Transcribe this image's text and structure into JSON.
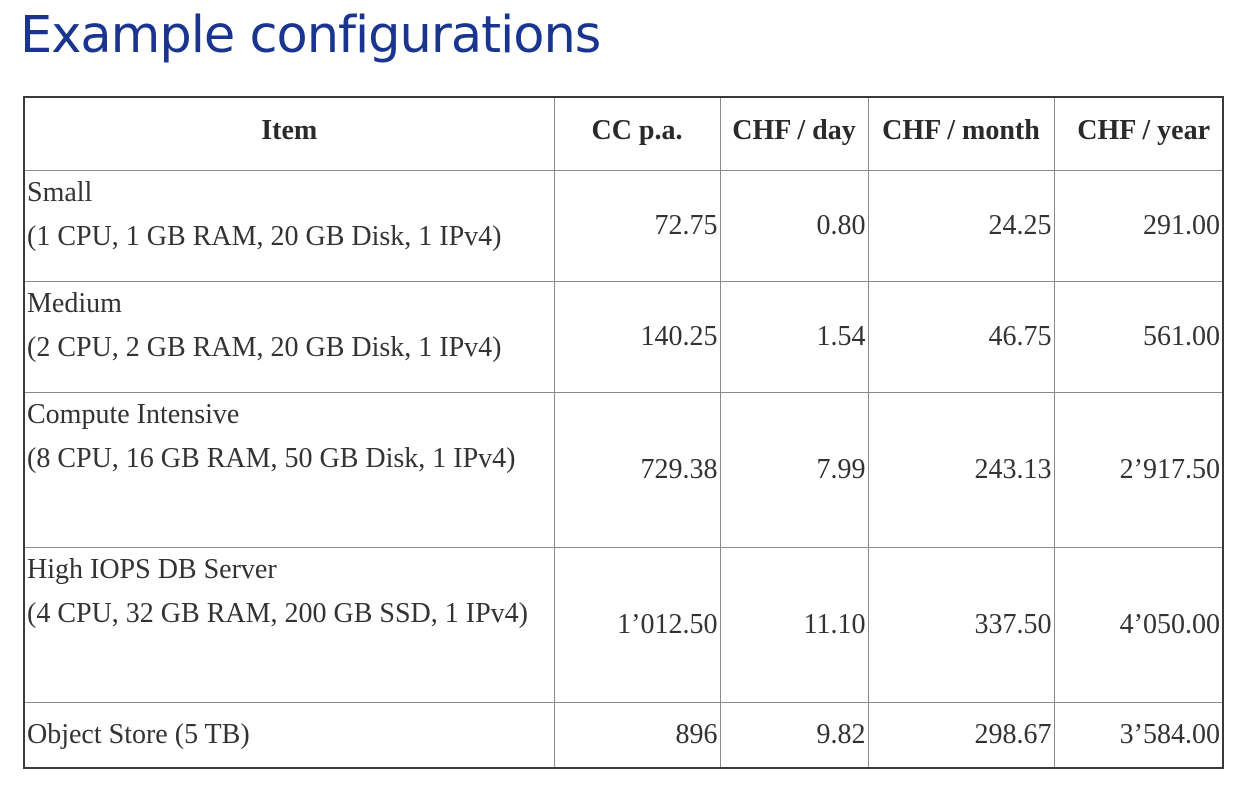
{
  "page": {
    "title": "Example configurations"
  },
  "table": {
    "headers": {
      "item": "Item",
      "cc_pa": "CC p.a.",
      "chf_day": "CHF / day",
      "chf_month": "CHF / month",
      "chf_year": "CHF / year"
    },
    "rows": [
      {
        "name": "Small",
        "spec": "(1 CPU, 1 GB RAM, 20 GB Disk, 1 IPv4)",
        "cc_pa": "72.75",
        "chf_day": "0.80",
        "chf_month": "24.25",
        "chf_year": "291.00"
      },
      {
        "name": "Medium",
        "spec": "(2 CPU, 2 GB RAM, 20 GB Disk, 1 IPv4)",
        "cc_pa": "140.25",
        "chf_day": "1.54",
        "chf_month": "46.75",
        "chf_year": "561.00"
      },
      {
        "name": "Compute Intensive",
        "spec": "(8 CPU, 16 GB RAM, 50 GB Disk, 1 IPv4)",
        "cc_pa": "729.38",
        "chf_day": "7.99",
        "chf_month": "243.13",
        "chf_year": "2’917.50"
      },
      {
        "name": "High IOPS DB Server",
        "spec": "(4 CPU, 32 GB RAM, 200 GB SSD, 1 IPv4)",
        "cc_pa": "1’012.50",
        "chf_day": "11.10",
        "chf_month": "337.50",
        "chf_year": "4’050.00"
      },
      {
        "name": "Object Store (5 TB)",
        "spec": "",
        "cc_pa": "896",
        "chf_day": "9.82",
        "chf_month": "298.67",
        "chf_year": "3’584.00"
      }
    ]
  },
  "colors": {
    "title": "#1a3590",
    "text": "#333333",
    "border": "#8a8a8a"
  }
}
